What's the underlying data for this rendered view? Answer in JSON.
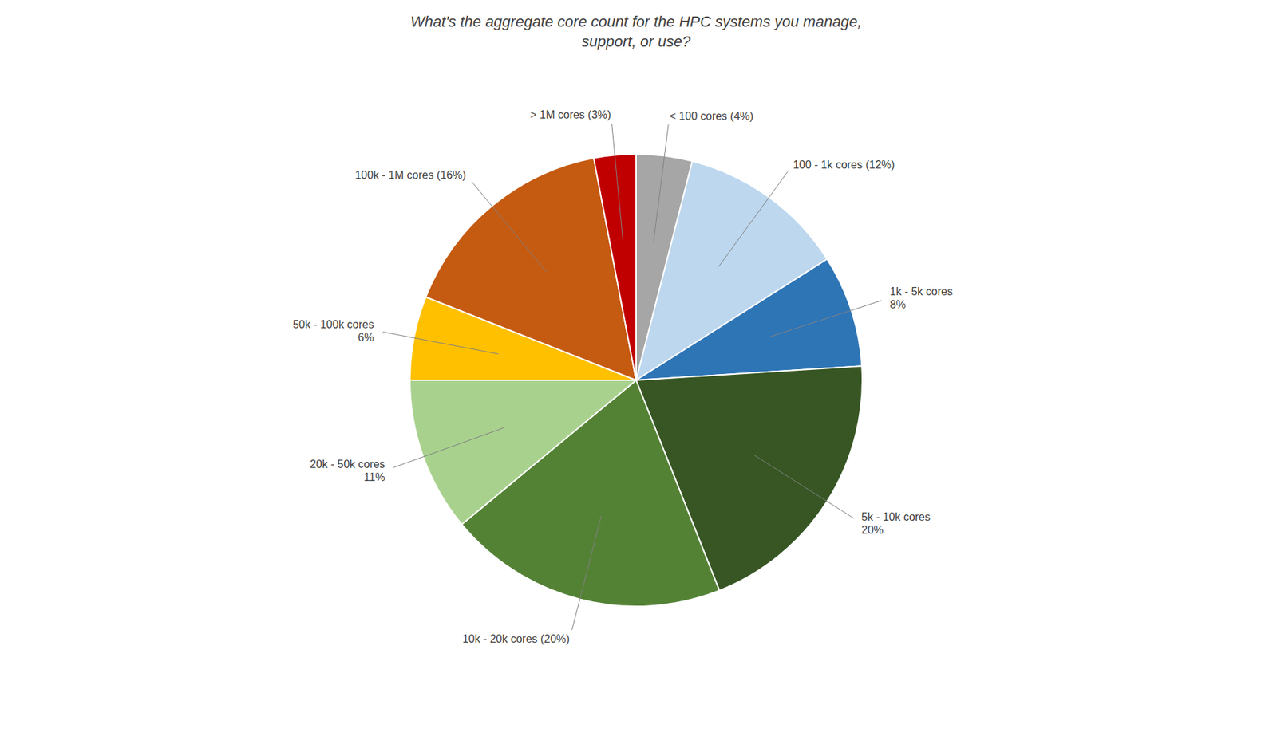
{
  "chart_data": {
    "type": "pie",
    "title": "What's the aggregate core count for the HPC systems you manage,\nsupport, or use?",
    "categories": [
      "< 100 cores (4%)",
      "100 - 1k cores (12%)",
      "1k - 5k cores\n8%",
      "5k - 10k cores\n20%",
      "10k - 20k cores (20%)",
      "20k - 50k cores\n11%",
      "50k - 100k cores\n6%",
      "100k - 1M cores (16%)",
      "> 1M cores (3%)"
    ],
    "values": [
      4,
      12,
      8,
      20,
      20,
      11,
      6,
      16,
      3
    ],
    "colors": [
      "#a6a6a6",
      "#bdd7ee",
      "#2e75b6",
      "#375623",
      "#548235",
      "#a9d18e",
      "#ffc000",
      "#c55a11",
      "#c00000"
    ]
  }
}
